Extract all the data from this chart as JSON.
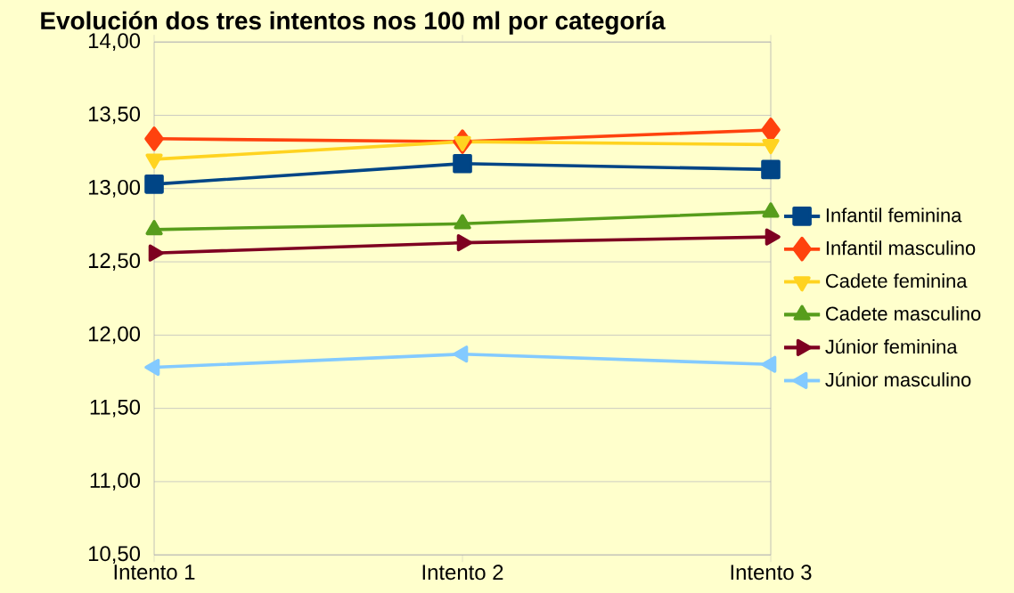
{
  "chart_data": {
    "type": "line",
    "title": "Evolución dos tres intentos nos 100 ml por categoría",
    "categories": [
      "Intento 1",
      "Intento 2",
      "Intento 3"
    ],
    "series": [
      {
        "name": "Infantil feminina",
        "color": "#004586",
        "marker": "square",
        "values": [
          13.03,
          13.17,
          13.13
        ]
      },
      {
        "name": "Infantil masculino",
        "color": "#ff420e",
        "marker": "diamond",
        "values": [
          13.34,
          13.32,
          13.4
        ]
      },
      {
        "name": "Cadete feminina",
        "color": "#ffd320",
        "marker": "triangle-down",
        "values": [
          13.2,
          13.32,
          13.3
        ]
      },
      {
        "name": "Cadete masculino",
        "color": "#579d1c",
        "marker": "triangle",
        "values": [
          12.72,
          12.76,
          12.84
        ]
      },
      {
        "name": "Júnior feminina",
        "color": "#7e0021",
        "marker": "triangle-right",
        "values": [
          12.56,
          12.63,
          12.67
        ]
      },
      {
        "name": "Júnior masculino",
        "color": "#83caff",
        "marker": "triangle-left",
        "values": [
          11.78,
          11.87,
          11.8
        ]
      }
    ],
    "ylim": [
      10.5,
      14
    ],
    "yticks": [
      {
        "value": 10.5,
        "label": "10,50"
      },
      {
        "value": 11,
        "label": "11,00"
      },
      {
        "value": 11.5,
        "label": "11,50"
      },
      {
        "value": 12,
        "label": "12,00"
      },
      {
        "value": 12.5,
        "label": "12,50"
      },
      {
        "value": 13,
        "label": "13,00"
      },
      {
        "value": 13.5,
        "label": "13,50"
      },
      {
        "value": 14,
        "label": "14,00"
      }
    ],
    "grid": "y",
    "legend": "right",
    "line_style": "solid"
  }
}
